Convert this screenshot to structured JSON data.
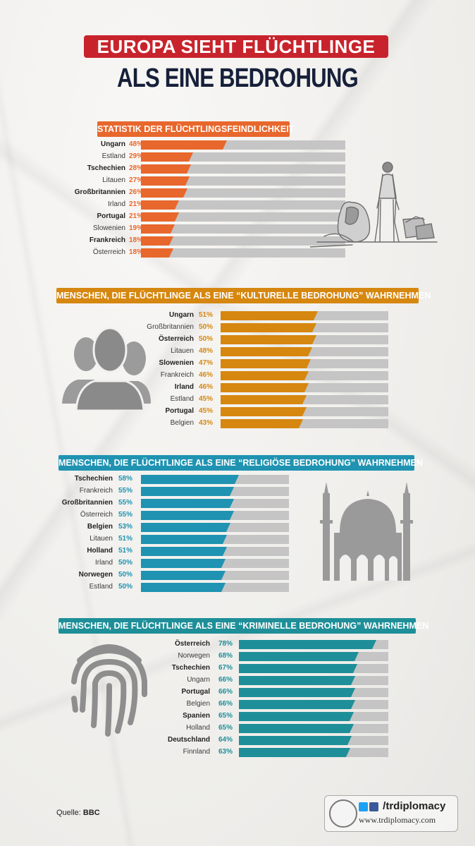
{
  "title_line1": "EUROPA SIEHT FLÜCHTLINGE",
  "title_line2": "ALS EINE BEDROHUNG",
  "colors": {
    "title_red": "#c8232c",
    "title_navy": "#16203a",
    "section1": "#e8672c",
    "section2": "#d6870f",
    "section3": "#1f93b1",
    "section4": "#1e8f98",
    "bar_bg": "#c5c5c5"
  },
  "source_label": "Quelle:",
  "source_value": "BBC",
  "logo": {
    "handle": "/trdiplomacy",
    "site": "www.trdiplomacy.com"
  },
  "chart_data": [
    {
      "type": "bar",
      "title": "STATISTIK DER FLÜCHTLINGSFEINDLICHKEIT",
      "categories": [
        "Ungarn",
        "Estland",
        "Tschechien",
        "Litauen",
        "Großbritannien",
        "Irland",
        "Portugal",
        "Slowenien",
        "Frankreich",
        "Österreich"
      ],
      "values": [
        48,
        29,
        28,
        27,
        26,
        21,
        21,
        19,
        18,
        18
      ],
      "labels": [
        "48%",
        "29%",
        "28%",
        "27%",
        "26%",
        "21%",
        "21%",
        "19%",
        "18%",
        "18%"
      ],
      "bold": [
        true,
        false,
        true,
        false,
        true,
        false,
        true,
        false,
        true,
        false
      ],
      "unit": "%",
      "ylim": [
        0,
        100
      ]
    },
    {
      "type": "bar",
      "title": "MENSCHEN, DIE FLÜCHTLINGE ALS EINE “KULTURELLE BEDROHUNG” WAHRNEHMEN",
      "categories": [
        "Ungarn",
        "Großbritannien",
        "Österreich",
        "Litauen",
        "Slowenien",
        "Frankreich",
        "Irland",
        "Estland",
        "Portugal",
        "Belgien"
      ],
      "values": [
        51,
        50,
        50,
        48,
        47,
        46,
        46,
        45,
        45,
        43
      ],
      "labels": [
        "51%",
        "50%",
        "50%",
        "48%",
        "47%",
        "46%",
        "46%",
        "45%",
        "45%",
        "43%"
      ],
      "bold": [
        true,
        false,
        true,
        false,
        true,
        false,
        true,
        false,
        true,
        false
      ],
      "unit": "%",
      "ylim": [
        0,
        100
      ]
    },
    {
      "type": "bar",
      "title": "MENSCHEN, DIE FLÜCHTLINGE ALS EINE  “RELIGIÖSE BEDROHUNG” WAHRNEHMEN",
      "categories": [
        "Tschechien",
        "Frankreich",
        "Großbritannien",
        "Österreich",
        "Belgien",
        "Litauen",
        "Holland",
        "Irland",
        "Norwegen",
        "Estland"
      ],
      "values": [
        58,
        55,
        55,
        55,
        53,
        51,
        51,
        50,
        50,
        50
      ],
      "labels": [
        "58%",
        "55%",
        "55%",
        "55%",
        "53%",
        "51%",
        "51%",
        "50%",
        "50%",
        "50%"
      ],
      "bold": [
        true,
        false,
        true,
        false,
        true,
        false,
        true,
        false,
        true,
        false
      ],
      "unit": "%",
      "ylim": [
        0,
        100
      ]
    },
    {
      "type": "bar",
      "title": "MENSCHEN, DIE FLÜCHTLINGE ALS EINE “KRIMINELLE BEDROHUNG” WAHRNEHMEN",
      "categories": [
        "Österreich",
        "Norwegen",
        "Tschechien",
        "Ungarn",
        "Portugal",
        "Belgien",
        "Spanien",
        "Holland",
        "Deutschland",
        "Finnland"
      ],
      "values": [
        78,
        68,
        67,
        66,
        66,
        66,
        65,
        65,
        64,
        63
      ],
      "labels": [
        "78%",
        "68%",
        "67%",
        "66%",
        "66%",
        "66%",
        "65%",
        "65%",
        "64%",
        "63%"
      ],
      "bold": [
        true,
        false,
        true,
        false,
        true,
        false,
        true,
        false,
        true,
        false
      ],
      "unit": "%",
      "ylim": [
        0,
        100
      ]
    }
  ]
}
